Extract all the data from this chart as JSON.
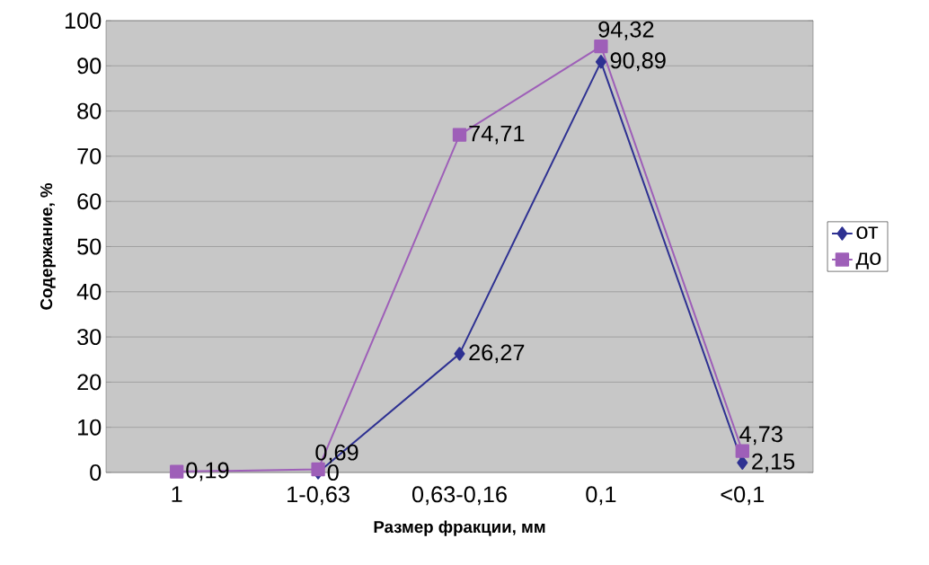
{
  "chart_data": {
    "type": "line",
    "xlabel": "Размер фракции, мм",
    "ylabel": "Содержание, %",
    "categories": [
      "1",
      "1-0,63",
      "0,63-0,16",
      "0,1",
      "<0,1"
    ],
    "series": [
      {
        "name": "от",
        "color": "#2e3192",
        "marker": "diamond",
        "values": [
          null,
          0,
          26.27,
          90.89,
          2.15
        ],
        "value_labels": [
          null,
          "0",
          "26,27",
          "90,89",
          "2,15"
        ]
      },
      {
        "name": "до",
        "color": "#9e5fb8",
        "marker": "square",
        "values": [
          0.19,
          0.69,
          74.71,
          94.32,
          4.73
        ],
        "value_labels": [
          "0,19",
          "0,69",
          "74,71",
          "94,32",
          "4,73"
        ]
      }
    ],
    "ylim": [
      0,
      100
    ],
    "yticks": [
      0,
      10,
      20,
      30,
      40,
      50,
      60,
      70,
      80,
      90,
      100
    ],
    "grid": "y",
    "legend": "right"
  }
}
